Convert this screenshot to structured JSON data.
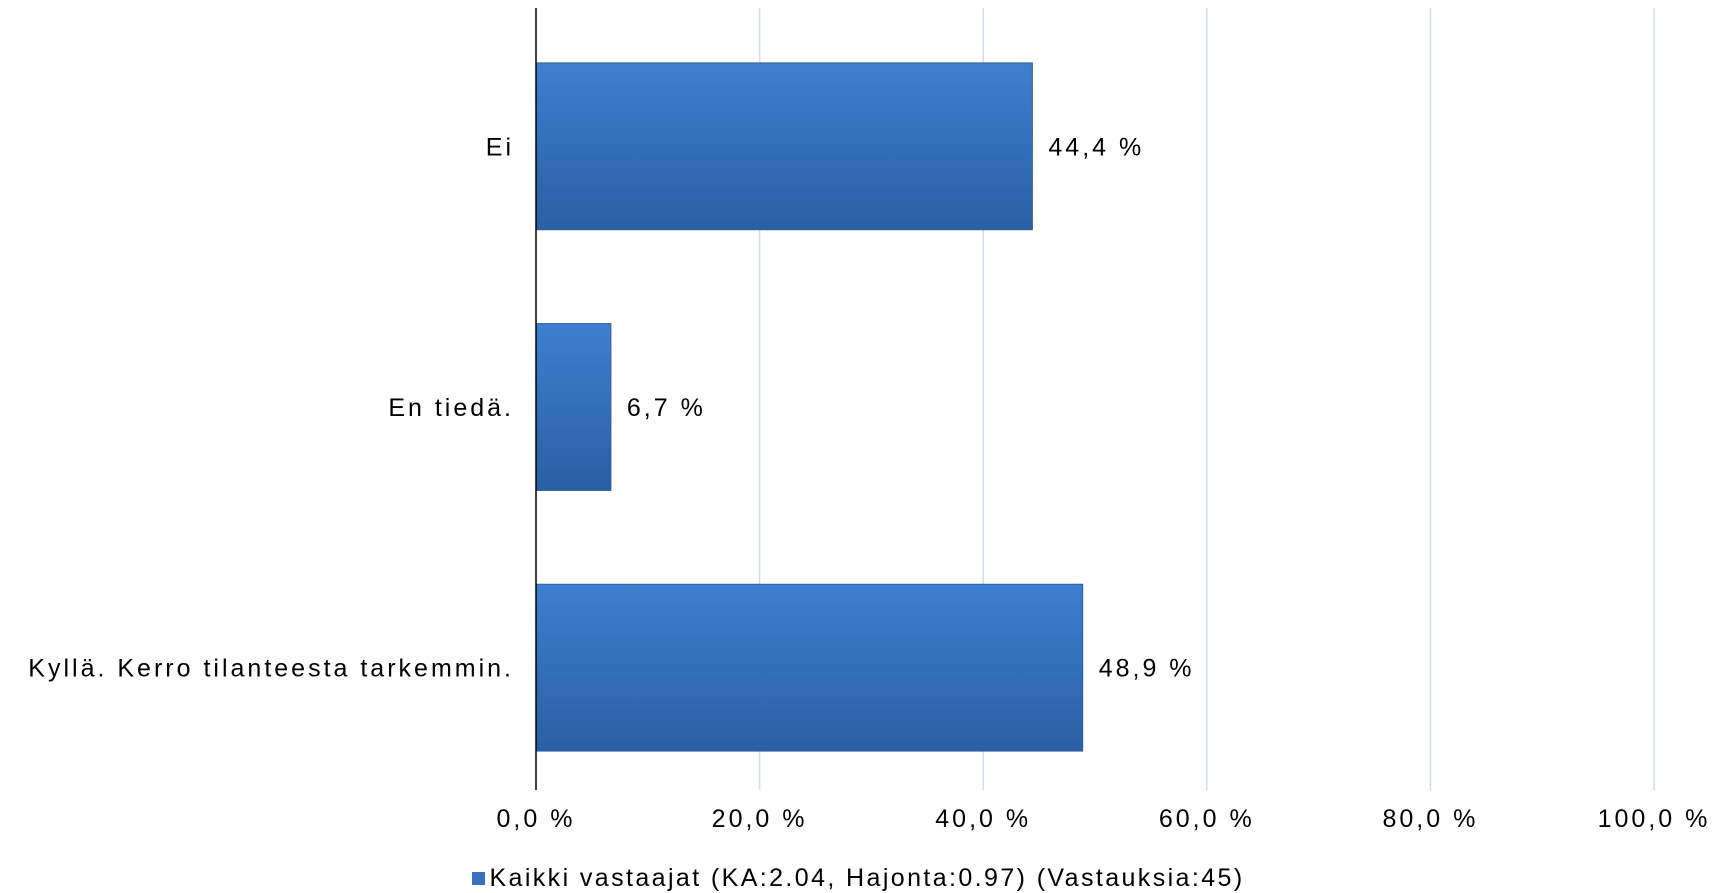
{
  "chart_data": {
    "type": "bar",
    "orientation": "horizontal",
    "categories": [
      "Ei",
      "En tiedä.",
      "Kyllä. Kerro tilanteesta tarkemmin."
    ],
    "series": [
      {
        "name": "Kaikki vastaajat (KA:2.04, Hajonta:0.97) (Vastauksia:45)",
        "values": [
          44.4,
          6.7,
          48.9
        ],
        "labels": [
          "44,4 %",
          "6,7 %",
          "48,9 %"
        ]
      }
    ],
    "x_ticks": [
      "0,0 %",
      "20,0 %",
      "40,0 %",
      "60,0 %",
      "80,0 %",
      "100,0 %"
    ],
    "xlim": [
      0,
      100
    ],
    "grid": true,
    "legend_position": "bottom",
    "colors": {
      "bar_top": "#3d7fd0",
      "bar_bottom": "#2a5fa3",
      "bar_edge": "#2e5f9e",
      "grid": "#cfe0ee",
      "axis": "#000000",
      "legend_swatch": "#3a72c0"
    }
  }
}
